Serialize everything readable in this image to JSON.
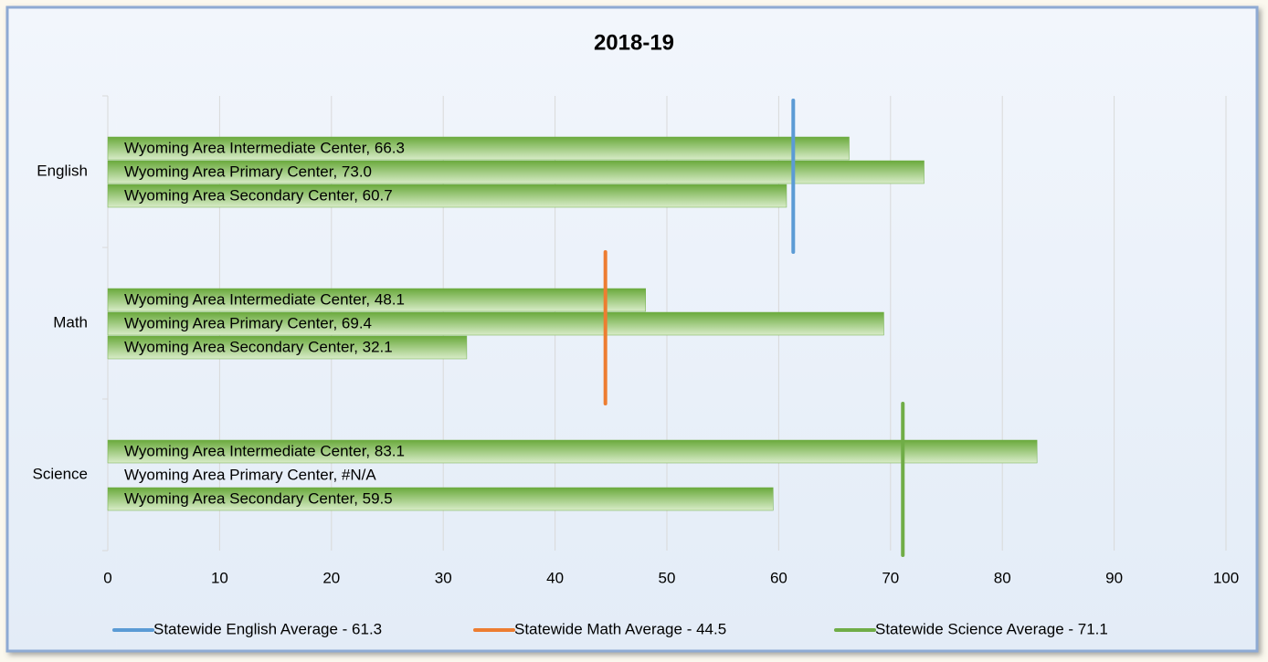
{
  "chart_data": {
    "type": "bar",
    "orientation": "horizontal",
    "title": "2018-19",
    "categories": [
      "English",
      "Math",
      "Science"
    ],
    "series": [
      {
        "name": "Wyoming Area Intermediate Center",
        "color": "#70ad47",
        "values": [
          66.3,
          48.1,
          83.1
        ],
        "value_labels": [
          "Wyoming Area Intermediate Center, 66.3",
          "Wyoming Area Intermediate Center, 48.1",
          "Wyoming Area Intermediate Center, 83.1"
        ]
      },
      {
        "name": "Wyoming Area Primary Center",
        "color": "#70ad47",
        "values": [
          73.0,
          69.4,
          null
        ],
        "value_labels": [
          "Wyoming Area Primary Center, 73.0",
          "Wyoming Area Primary Center, 69.4",
          "Wyoming Area Primary Center, #N/A"
        ]
      },
      {
        "name": "Wyoming Area Secondary Center",
        "color": "#70ad47",
        "values": [
          60.7,
          32.1,
          59.5
        ],
        "value_labels": [
          "Wyoming Area Secondary Center, 60.7",
          "Wyoming Area Secondary Center, 32.1",
          "Wyoming Area Secondary Center, 59.5"
        ]
      }
    ],
    "reference_lines": [
      {
        "name": "Statewide English Average - 61.3",
        "value": 61.3,
        "color": "#5b9bd5"
      },
      {
        "name": "Statewide Math Average - 44.5",
        "value": 44.5,
        "color": "#ed7d31"
      },
      {
        "name": "Statewide Science Average - 71.1",
        "value": 71.1,
        "color": "#70ad47"
      }
    ],
    "xlim": [
      0,
      100
    ],
    "xticks": [
      0,
      10,
      20,
      30,
      40,
      50,
      60,
      70,
      80,
      90,
      100
    ],
    "grid": true,
    "legend": "bottom"
  }
}
